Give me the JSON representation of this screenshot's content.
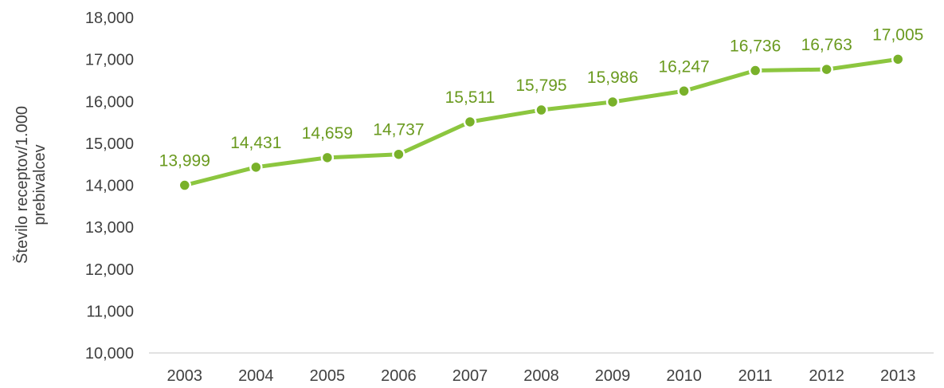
{
  "chart_data": {
    "type": "line",
    "title": "",
    "xlabel": "",
    "ylabel_lines": [
      "Število receptov/1.000",
      "prebivalcev"
    ],
    "categories": [
      "2003",
      "2004",
      "2005",
      "2006",
      "2007",
      "2008",
      "2009",
      "2010",
      "2011",
      "2012",
      "2013"
    ],
    "series": [
      {
        "values": [
          13999,
          14431,
          14659,
          14737,
          15511,
          15795,
          15986,
          16247,
          16736,
          16763,
          17005
        ],
        "labels": [
          "13,999",
          "14,431",
          "14,659",
          "14,737",
          "15,511",
          "15,795",
          "15,986",
          "16,247",
          "16,736",
          "16,763",
          "17,005"
        ]
      }
    ],
    "ylim": [
      10000,
      18000
    ],
    "yticks": [
      10000,
      11000,
      12000,
      13000,
      14000,
      15000,
      16000,
      17000,
      18000
    ],
    "ytick_labels": [
      "10,000",
      "11,000",
      "12,000",
      "13,000",
      "14,000",
      "15,000",
      "16,000",
      "17,000",
      "18,000"
    ],
    "grid": false,
    "legend": "none",
    "colors": {
      "line": "#8cc63f",
      "marker_fill": "#79b12a",
      "marker_stroke": "#ffffff",
      "label": "#6a9a1f",
      "axis": "#d9d9d9"
    }
  }
}
